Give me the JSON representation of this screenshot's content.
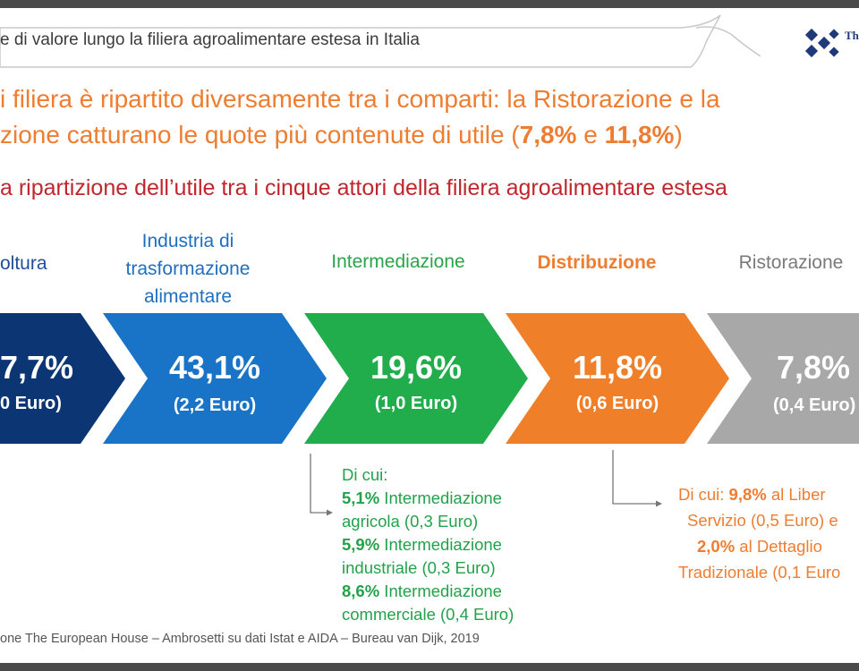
{
  "header": {
    "title": "e di valore lungo la filiera agroalimentare estesa in Italia",
    "logo_text": "Th"
  },
  "headline": {
    "line1": "i filiera è ripartito diversamente tra i comparti: la Ristorazione e la",
    "line2_prefix": "zione catturano le quote più contenute di utile (",
    "highlight1": "7,8%",
    "connector": " e ",
    "highlight2": "11,8%",
    "line2_suffix": ")"
  },
  "subtitle": "a ripartizione dell’utile tra i cinque attori della filiera agroalimentare estesa",
  "actors": [
    {
      "label_lines": [
        "oltura"
      ],
      "percent": "7,7%",
      "euro": "0 Euro)",
      "color": "#0c3574",
      "label_color": "#1f4e99"
    },
    {
      "label_lines": [
        "Industria di",
        "trasformazione",
        "alimentare"
      ],
      "percent": "43,1%",
      "euro": "(2,2 Euro)",
      "color": "#1974c8",
      "label_color": "#1f6fc0"
    },
    {
      "label_lines": [
        "Intermediazione"
      ],
      "percent": "19,6%",
      "euro": "(1,0 Euro)",
      "color": "#21ad4b",
      "label_color": "#2aa449"
    },
    {
      "label_lines": [
        "Distribuzione"
      ],
      "percent": "11,8%",
      "euro": "(0,6 Euro)",
      "color": "#f07f2a",
      "label_color": "#ee7d31",
      "label_bold": true
    },
    {
      "label_lines": [
        "Ristorazione"
      ],
      "percent": "7,8%",
      "euro": "(0,4 Euro)",
      "color": "#a8a8a8",
      "label_color": "#7a7a7a"
    }
  ],
  "note_intermediazione": {
    "heading": "Di cui:",
    "items": [
      {
        "pct": "5,1%",
        "text_line1": " Intermediazione",
        "text_line2": "agricola (0,3 Euro)"
      },
      {
        "pct": "5,9%",
        "text_line1": " Intermediazione",
        "text_line2": "industriale (0,3 Euro)"
      },
      {
        "pct": "8,6%",
        "text_line1": " Intermediazione",
        "text_line2": "commerciale (0,4 Euro)"
      }
    ]
  },
  "note_distribuzione": {
    "prefix": "Di cui: ",
    "pct1": "9,8%",
    "text1": " al Liber",
    "line2": "Servizio (0,5 Euro) e",
    "pct2": "2,0%",
    "text2": " al Dettaglio",
    "line4": "Tradizionale (0,1 Euro"
  },
  "source": "one The European House – Ambrosetti su dati Istat e AIDA – Bureau van Dijk, 2019"
}
